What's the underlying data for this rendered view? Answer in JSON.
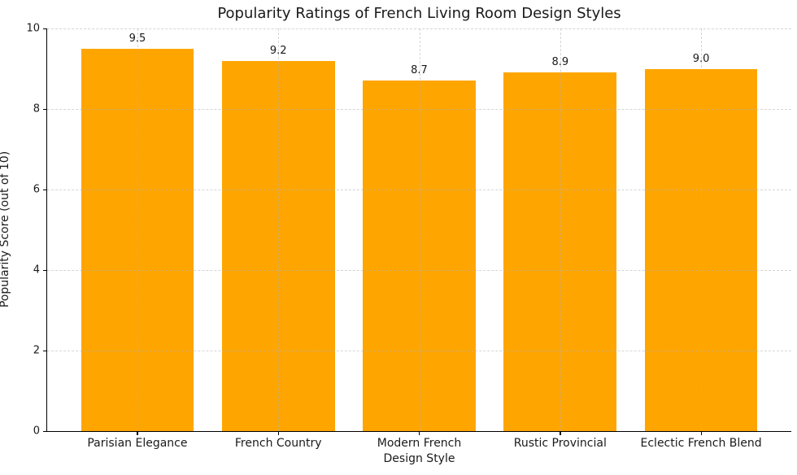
{
  "chart_data": {
    "type": "bar",
    "title": "Popularity Ratings of French Living Room Design Styles",
    "xlabel": "Design Style",
    "ylabel": "Popularity Score (out of 10)",
    "categories": [
      "Parisian Elegance",
      "French Country",
      "Modern French",
      "Rustic Provincial",
      "Eclectic French Blend"
    ],
    "values": [
      9.5,
      9.2,
      8.7,
      8.9,
      9.0
    ],
    "value_labels": [
      "9.5",
      "9.2",
      "8.7",
      "8.9",
      "9.0"
    ],
    "ylim": [
      0,
      10
    ],
    "yticks": [
      0,
      2,
      4,
      6,
      8,
      10
    ],
    "grid": true,
    "grid_style": "dashed",
    "legend": "none",
    "bar_color": "#FFA500",
    "grid_color": "#b2b2b2",
    "spine_color": "#000000",
    "text_color": "#1a1a1a",
    "background_color": "#ffffff"
  }
}
